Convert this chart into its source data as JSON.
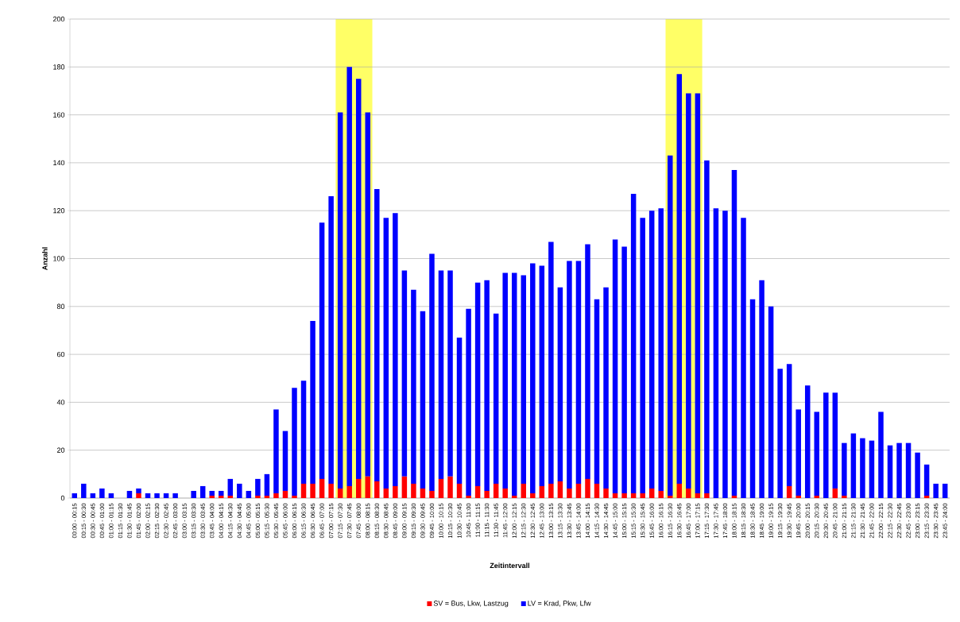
{
  "chart_data": {
    "type": "bar",
    "stacked": true,
    "xlabel": "Zeitintervall",
    "ylabel": "Anzahl",
    "categories": [
      "00:00 - 00:15",
      "00:15 - 00:30",
      "00:30 - 00:45",
      "00:45 - 01:00",
      "01:00 - 01:15",
      "01:15 - 01:30",
      "01:30 - 01:45",
      "01:45 - 02:00",
      "02:00 - 02:15",
      "02:15 - 02:30",
      "02:30 - 02:45",
      "02:45 - 03:00",
      "03:00 - 03:15",
      "03:15 - 03:30",
      "03:30 - 03:45",
      "03:45 - 04:00",
      "04:00 - 04:15",
      "04:15 - 04:30",
      "04:30 - 04:45",
      "04:45 - 05:00",
      "05:00 - 05:15",
      "05:15 - 05:30",
      "05:30 - 05:45",
      "05:45 - 06:00",
      "06:00 - 06:15",
      "06:15 - 06:30",
      "06:30 - 06:45",
      "06:45 - 07:00",
      "07:00 - 07:15",
      "07:15 - 07:30",
      "07:30 - 07:45",
      "07:45 - 08:00",
      "08:00 - 08:15",
      "08:15 - 08:30",
      "08:30 - 08:45",
      "08:45 - 09:00",
      "09:00 - 09:15",
      "09:15 - 09:30",
      "09:30 - 09:45",
      "09:45 - 10:00",
      "10:00 - 10:15",
      "10:15 - 10:30",
      "10:30 - 10:45",
      "10:45 - 11:00",
      "11:00 - 11:15",
      "11:15 - 11:30",
      "11:30 - 11:45",
      "11:45 - 12:00",
      "12:00 - 12:15",
      "12:15 - 12:30",
      "12:30 - 12:45",
      "12:45 - 13:00",
      "13:00 - 13:15",
      "13:15 - 13:30",
      "13:30 - 13:45",
      "13:45 - 14:00",
      "14:00 - 14:15",
      "14:15 - 14:30",
      "14:30 - 14:45",
      "14:45 - 15:00",
      "15:00 - 15:15",
      "15:15 - 15:30",
      "15:30 - 15:45",
      "15:45 - 16:00",
      "16:00 - 16:15",
      "16:15 - 16:30",
      "16:30 - 16:45",
      "16:45 - 17:00",
      "17:00 - 17:15",
      "17:15 - 17:30",
      "17:30 - 17:45",
      "17:45 - 18:00",
      "18:00 - 18:15",
      "18:15 - 18:30",
      "18:30 - 18:45",
      "18:45 - 19:00",
      "19:00 - 19:15",
      "19:15 - 19:30",
      "19:30 - 19:45",
      "19:45 - 20:00",
      "20:00 - 20:15",
      "20:15 - 20:30",
      "20:30 - 20:45",
      "20:45 - 21:00",
      "21:00 - 21:15",
      "21:15 - 21:30",
      "21:30 - 21:45",
      "21:45 - 22:00",
      "22:00 - 22:15",
      "22:15 - 22:30",
      "22:30 - 22:45",
      "22:45 - 23:00",
      "23:00 - 23:15",
      "23:15 - 23:30",
      "23:30 - 23:45",
      "23:45 - 24:00"
    ],
    "series": [
      {
        "name": "SV = Bus, Lkw, Lastzug",
        "color": "#ff0000",
        "values": [
          0,
          0,
          0,
          0,
          0,
          0,
          0,
          2,
          0,
          0,
          0,
          0,
          0,
          0,
          0,
          1,
          1,
          1,
          0,
          0,
          1,
          1,
          2,
          3,
          1,
          6,
          6,
          8,
          6,
          4,
          5,
          8,
          9,
          7,
          4,
          5,
          9,
          6,
          4,
          3,
          8,
          9,
          6,
          1,
          5,
          3,
          6,
          4,
          1,
          6,
          2,
          5,
          6,
          7,
          4,
          6,
          8,
          6,
          4,
          2,
          2,
          2,
          2,
          4,
          3,
          1,
          6,
          4,
          2,
          2,
          0,
          0,
          1,
          0,
          0,
          0,
          0,
          0,
          5,
          1,
          0,
          1,
          0,
          4,
          1,
          0,
          0,
          0,
          0,
          0,
          0,
          0,
          0,
          1,
          0,
          0
        ]
      },
      {
        "name": "LV = Krad, Pkw, Lfw",
        "color": "#0000ff",
        "values": [
          2,
          6,
          2,
          4,
          2,
          0,
          3,
          2,
          2,
          2,
          2,
          2,
          0,
          3,
          5,
          2,
          2,
          7,
          6,
          3,
          7,
          9,
          35,
          25,
          45,
          43,
          68,
          107,
          120,
          157,
          175,
          167,
          152,
          122,
          113,
          114,
          86,
          81,
          74,
          99,
          87,
          86,
          61,
          78,
          85,
          88,
          71,
          90,
          93,
          87,
          96,
          92,
          101,
          81,
          95,
          93,
          98,
          77,
          84,
          106,
          103,
          125,
          115,
          116,
          118,
          142,
          171,
          165,
          167,
          139,
          121,
          120,
          136,
          117,
          83,
          91,
          80,
          54,
          51,
          36,
          47,
          35,
          44,
          40,
          22,
          27,
          25,
          24,
          36,
          22,
          23,
          23,
          19,
          13,
          6,
          6
        ]
      }
    ],
    "bands": [
      {
        "axis": "x",
        "from": "07:15 - 07:30",
        "to": "08:00 - 08:15",
        "color": "#ffff66"
      },
      {
        "axis": "x",
        "from": "16:15 - 16:30",
        "to": "17:00 - 17:15",
        "color": "#ffff66"
      }
    ],
    "ylim": [
      0,
      200
    ],
    "yticks": [
      0,
      20,
      40,
      60,
      80,
      100,
      120,
      140,
      160,
      180,
      200
    ],
    "grid": "y",
    "legend": "bottom"
  }
}
